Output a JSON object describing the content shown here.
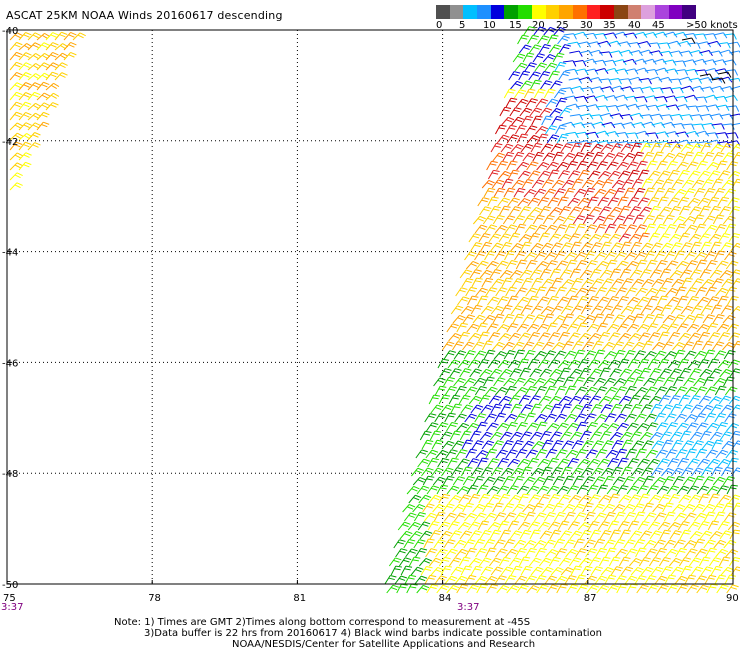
{
  "title": "ASCAT 25KM NOAA Winds 20160617 descending",
  "legend": {
    "colors": [
      "#505050",
      "#909090",
      "#00bfff",
      "#1e90ff",
      "#0000dd",
      "#00a000",
      "#22dd00",
      "#ffff00",
      "#ffd000",
      "#ffa500",
      "#ff7000",
      "#ff2020",
      "#cc0000",
      "#8b4513",
      "#d08070",
      "#dda0dd",
      "#aa44dd",
      "#8000c0",
      "#400080"
    ],
    "labels": [
      "0",
      "5",
      "10",
      "15",
      "20",
      "25",
      "30",
      "35",
      "40",
      "45",
      ">50 knots"
    ]
  },
  "axes": {
    "lat_ticks": [
      "-40",
      "-42",
      "-44",
      "-46",
      "-48",
      "-50"
    ],
    "lon_ticks": [
      "75",
      "78",
      "81",
      "84",
      "87",
      "90"
    ],
    "time_labels": [
      "3:37",
      "3:37"
    ],
    "lon_range": [
      75,
      90
    ],
    "lat_range": [
      -50,
      -40
    ],
    "grid": "dotted"
  },
  "notes": [
    "Note: 1) Times are GMT 2)Times along bottom correspond to measurement at -45S",
    "3)Data buffer is 22 hrs from 20160617 4) Black wind barbs indicate possible contamination",
    "NOAA/NESDIS/Center for Satellite Applications and Research"
  ],
  "wind_regions": [
    {
      "name": "west-swath",
      "speed_band": "20-30",
      "colors": [
        "#ffd000",
        "#ffa500",
        "#ffff00"
      ]
    },
    {
      "name": "east-swath-north",
      "speed_band": "10-20",
      "colors": [
        "#00bfff",
        "#1e90ff",
        "#0000dd"
      ]
    },
    {
      "name": "east-swath-band-high",
      "speed_band": "25-35",
      "colors": [
        "#ff2020",
        "#cc0000",
        "#ff7000"
      ]
    },
    {
      "name": "east-swath-band-mid",
      "speed_band": "20-30",
      "colors": [
        "#ffd000",
        "#ffa500"
      ]
    },
    {
      "name": "east-swath-mid-blue",
      "speed_band": "15-20",
      "colors": [
        "#22dd00",
        "#00a000",
        "#0000dd"
      ]
    },
    {
      "name": "east-swath-south",
      "speed_band": "20-25",
      "colors": [
        "#ffff00",
        "#ffd000"
      ]
    }
  ]
}
